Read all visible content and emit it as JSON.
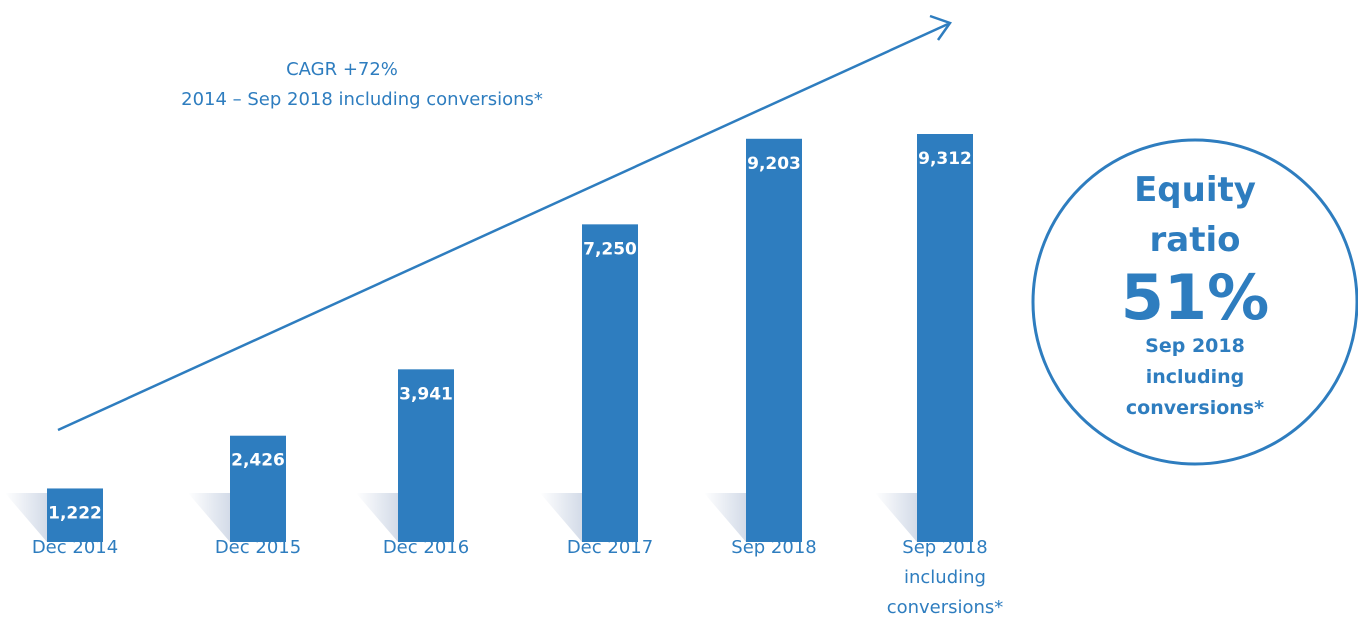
{
  "chart_data": {
    "type": "bar",
    "categories": [
      "Dec 2014",
      "Dec 2015",
      "Dec 2016",
      "Dec 2017",
      "Sep 2018",
      "Sep 2018 including conversions*"
    ],
    "values": [
      1222,
      2426,
      3941,
      7250,
      9203,
      9312
    ],
    "value_labels": [
      "1,222",
      "2,426",
      "3,941",
      "7,250",
      "9,203",
      "9,312"
    ],
    "color": "#2e7dbf",
    "annotations": [
      "CAGR +72%",
      "2014 – Sep 2018 including conversions*"
    ],
    "callout": {
      "title": "Equity ratio",
      "value": "51%",
      "note": "Sep 2018 including conversions*"
    }
  }
}
